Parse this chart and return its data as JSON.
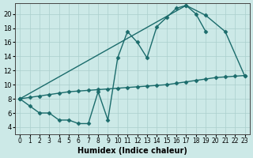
{
  "background_color": "#cce9e7",
  "grid_color": "#aacfcc",
  "line_color": "#1a6b6b",
  "marker": "D",
  "markersize": 2.5,
  "linewidth": 1.0,
  "xlabel": "Humidex (Indice chaleur)",
  "xlim": [
    -0.5,
    23.5
  ],
  "ylim": [
    3.0,
    21.5
  ],
  "yticks": [
    4,
    6,
    8,
    10,
    12,
    14,
    16,
    18,
    20
  ],
  "xticks": [
    0,
    1,
    2,
    3,
    4,
    5,
    6,
    7,
    8,
    9,
    10,
    11,
    12,
    13,
    14,
    15,
    16,
    17,
    18,
    19,
    20,
    21,
    22,
    23
  ],
  "line_curve_x": [
    0,
    1,
    2,
    3,
    4,
    5,
    6,
    7,
    8,
    9,
    10,
    11,
    12,
    13,
    14,
    15,
    16,
    17,
    18,
    19
  ],
  "line_curve_y": [
    8,
    7,
    6,
    6,
    5,
    5,
    4.5,
    4.5,
    9,
    5,
    13.8,
    17.5,
    16,
    13.8,
    18.2,
    19.5,
    20.8,
    21.2,
    20,
    17.5
  ],
  "line_straight_x": [
    0,
    1,
    2,
    3,
    4,
    5,
    6,
    7,
    8,
    9,
    10,
    11,
    12,
    13,
    14,
    15,
    16,
    17,
    18,
    19,
    20,
    21,
    22,
    23
  ],
  "line_straight_y": [
    8,
    8.2,
    8.4,
    8.6,
    8.8,
    9.0,
    9.1,
    9.2,
    9.3,
    9.4,
    9.5,
    9.6,
    9.7,
    9.8,
    9.9,
    10.0,
    10.2,
    10.4,
    10.6,
    10.8,
    11.0,
    11.1,
    11.2,
    11.3
  ],
  "line_triangle_x": [
    0,
    17,
    19,
    21,
    23
  ],
  "line_triangle_y": [
    8,
    21.2,
    19.8,
    17.5,
    11.2
  ]
}
